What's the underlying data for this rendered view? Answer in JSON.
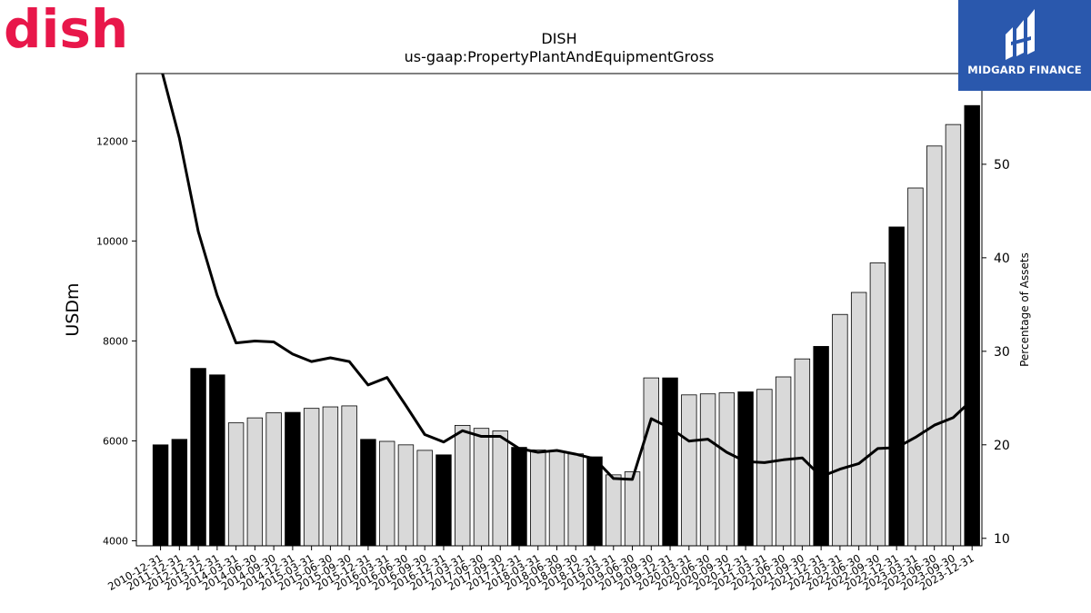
{
  "brand": {
    "company_logo_text": "dish",
    "company_logo_color": "#e8174a",
    "publisher_logo_text": "MIDGARD FINANCE",
    "publisher_logo_bg": "#2a58ad"
  },
  "chart_data": {
    "type": "bar",
    "title": "DISH",
    "subtitle": "us-gaap:PropertyPlantAndEquipmentGross",
    "ylabel": "USDm",
    "y2label": "Percentage of Assets",
    "ylim": [
      3900,
      13350
    ],
    "y2lim": [
      9.2,
      59.7
    ],
    "yticks": [
      4000,
      6000,
      8000,
      10000,
      12000
    ],
    "y2ticks": [
      10,
      20,
      30,
      40,
      50
    ],
    "grid": false,
    "legend": "none",
    "colors": {
      "annual": "#000000",
      "quarterly": "#d9d9d9",
      "line": "#000000"
    },
    "categories": [
      "2010-12-31",
      "2011-12-31",
      "2012-12-31",
      "2013-12-31",
      "2014-03-31",
      "2014-06-30",
      "2014-09-30",
      "2014-12-31",
      "2015-03-31",
      "2015-06-30",
      "2015-09-30",
      "2015-12-31",
      "2016-03-31",
      "2016-06-30",
      "2016-09-30",
      "2016-12-31",
      "2017-03-31",
      "2017-06-30",
      "2017-09-30",
      "2017-12-31",
      "2018-03-31",
      "2018-06-30",
      "2018-09-30",
      "2018-12-31",
      "2019-03-31",
      "2019-06-30",
      "2019-09-30",
      "2019-12-31",
      "2020-03-31",
      "2020-06-30",
      "2020-09-30",
      "2020-12-31",
      "2021-03-31",
      "2021-06-30",
      "2021-09-30",
      "2021-12-31",
      "2022-03-31",
      "2022-06-30",
      "2022-09-30",
      "2022-12-31",
      "2023-03-31",
      "2023-06-30",
      "2023-09-30",
      "2023-12-31"
    ],
    "series": [
      {
        "kind": "bar",
        "values": [
          5920,
          6030,
          7450,
          7320,
          6360,
          6460,
          6560,
          6570,
          6650,
          6680,
          6700,
          6030,
          5990,
          5920,
          5810,
          5720,
          6310,
          6250,
          6200,
          5870,
          5820,
          5790,
          5740,
          5680,
          5320,
          5380,
          7260,
          7260,
          6920,
          6940,
          6960,
          6980,
          7030,
          7280,
          7640,
          7890,
          8530,
          8970,
          9560,
          10280,
          11060,
          11900,
          12330,
          12710
        ],
        "annual_flags": [
          1,
          1,
          1,
          1,
          0,
          0,
          0,
          1,
          0,
          0,
          0,
          1,
          0,
          0,
          0,
          1,
          0,
          0,
          0,
          1,
          0,
          0,
          0,
          1,
          0,
          0,
          0,
          1,
          0,
          0,
          0,
          1,
          0,
          0,
          0,
          1,
          0,
          0,
          0,
          1,
          0,
          0,
          0,
          1
        ]
      },
      {
        "kind": "line",
        "axis": "right",
        "values": [
          60.5,
          52.8,
          42.8,
          36.0,
          30.9,
          31.1,
          31.0,
          29.7,
          28.9,
          29.3,
          28.9,
          26.4,
          27.2,
          24.2,
          21.1,
          20.3,
          21.5,
          20.9,
          20.9,
          19.6,
          19.2,
          19.4,
          19.0,
          18.5,
          16.4,
          16.3,
          22.8,
          21.8,
          20.4,
          20.6,
          19.2,
          18.2,
          18.1,
          18.4,
          18.6,
          16.6,
          17.4,
          18.0,
          19.6,
          19.7,
          20.8,
          22.1,
          22.9,
          24.8
        ]
      }
    ]
  }
}
